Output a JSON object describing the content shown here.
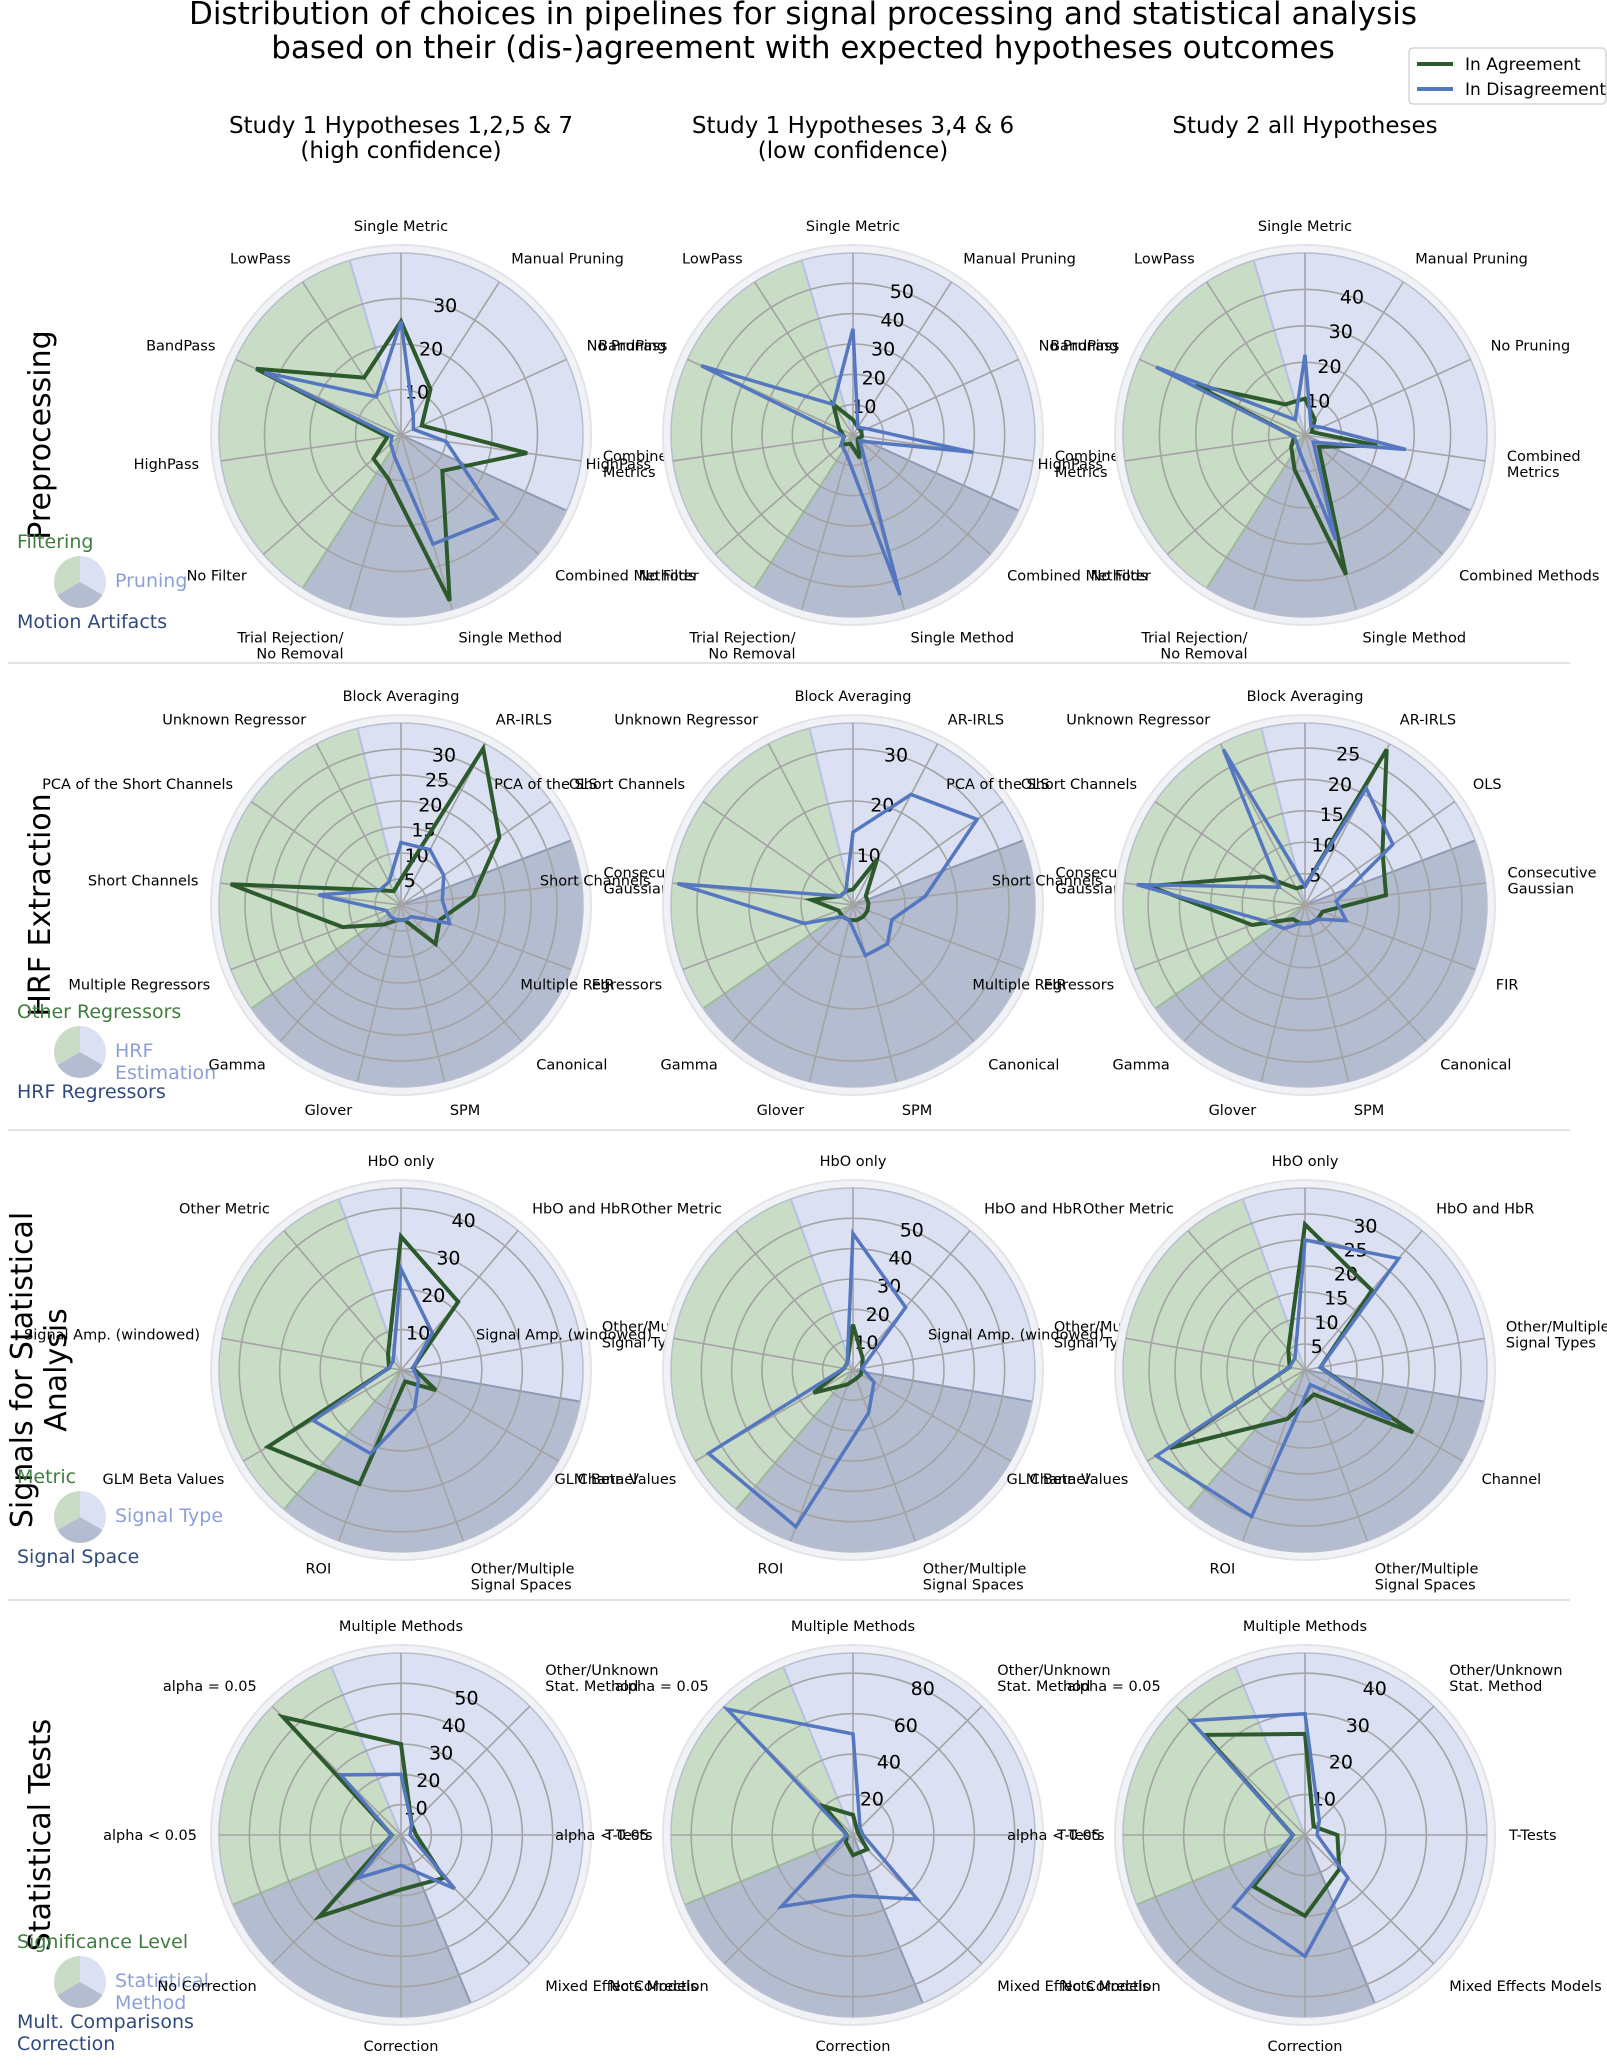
{
  "title": [
    "Distribution of choices in pipelines for signal processing and statistical analysis",
    "based on their (dis-)agreement with expected hypotheses outcomes"
  ],
  "legend": [
    {
      "label": "In Agreement",
      "color": "#2d5a2d"
    },
    {
      "label": "In Disagreement",
      "color": "#5577bf"
    }
  ],
  "columns": [
    [
      "Study 1 Hypotheses 1,2,5 & 7",
      "(high confidence)"
    ],
    [
      "Study 1 Hypotheses 3,4 & 6",
      "(low confidence)"
    ],
    [
      "Study 2 all Hypotheses"
    ]
  ],
  "colors": {
    "agree": "#2d5a2d",
    "disagree": "#5577bf",
    "sectorGreen": "#c9dcc6",
    "sectorLight": "#dbe1f2",
    "sectorDark": "#b4bccf",
    "txtGreen": "#3f7d3f",
    "txtLight": "#8ca0d6",
    "txtDark": "#2f4a7c"
  },
  "rows": [
    {
      "title": [
        "Preprocessing"
      ],
      "groups": [
        {
          "label": [
            "Filtering"
          ],
          "color": "green"
        },
        {
          "label": [
            "Pruning"
          ],
          "color": "light"
        },
        {
          "label": [
            "Motion Artifacts"
          ],
          "color": "dark"
        }
      ],
      "categories": [
        {
          "label": [
            "Single Metric"
          ],
          "group": 1
        },
        {
          "label": [
            "Manual Pruning"
          ],
          "group": 1
        },
        {
          "label": [
            "No Pruning"
          ],
          "group": 1
        },
        {
          "label": [
            "Combined",
            "Metrics"
          ],
          "group": 1
        },
        {
          "label": [
            "Combined Methods"
          ],
          "group": 2
        },
        {
          "label": [
            "Single Method"
          ],
          "group": 2
        },
        {
          "label": [
            "Trial Rejection/",
            "No Removal"
          ],
          "group": 2
        },
        {
          "label": [
            "No Filter"
          ],
          "group": 0
        },
        {
          "label": [
            "HighPass"
          ],
          "group": 0
        },
        {
          "label": [
            "BandPass"
          ],
          "group": 0
        },
        {
          "label": [
            "LowPass"
          ],
          "group": 0
        }
      ]
    },
    {
      "title": [
        "HRF Extraction"
      ],
      "groups": [
        {
          "label": [
            "Other Regressors"
          ],
          "color": "green"
        },
        {
          "label": [
            "HRF",
            "Estimation"
          ],
          "color": "light"
        },
        {
          "label": [
            "HRF Regressors"
          ],
          "color": "dark"
        }
      ],
      "categories": [
        {
          "label": [
            "Block Averaging"
          ],
          "group": 1
        },
        {
          "label": [
            "AR-IRLS"
          ],
          "group": 1
        },
        {
          "label": [
            "OLS"
          ],
          "group": 1
        },
        {
          "label": [
            "Consecutive",
            "Gaussian"
          ],
          "group": 2
        },
        {
          "label": [
            "FIR"
          ],
          "group": 2
        },
        {
          "label": [
            "Canonical"
          ],
          "group": 2
        },
        {
          "label": [
            "SPM"
          ],
          "group": 2
        },
        {
          "label": [
            "Glover"
          ],
          "group": 2
        },
        {
          "label": [
            "Gamma"
          ],
          "group": 2
        },
        {
          "label": [
            "Multiple Regressors"
          ],
          "group": 0
        },
        {
          "label": [
            "Short Channels"
          ],
          "group": 0
        },
        {
          "label": [
            "PCA of the Short Channels"
          ],
          "group": 0
        },
        {
          "label": [
            "Unknown Regressor"
          ],
          "group": 0
        }
      ]
    },
    {
      "title": [
        "Signals for Statistical",
        "Analysis"
      ],
      "groups": [
        {
          "label": [
            "Metric"
          ],
          "color": "green"
        },
        {
          "label": [
            "Signal Type"
          ],
          "color": "light"
        },
        {
          "label": [
            "Signal Space"
          ],
          "color": "dark"
        }
      ],
      "categories": [
        {
          "label": [
            "HbO only"
          ],
          "group": 1
        },
        {
          "label": [
            "HbO and HbR"
          ],
          "group": 1
        },
        {
          "label": [
            "Other/Multiple",
            "Signal Types"
          ],
          "group": 1
        },
        {
          "label": [
            "Channel"
          ],
          "group": 2
        },
        {
          "label": [
            "Other/Multiple",
            "Signal Spaces"
          ],
          "group": 2
        },
        {
          "label": [
            "ROI"
          ],
          "group": 2
        },
        {
          "label": [
            "GLM Beta Values"
          ],
          "group": 0
        },
        {
          "label": [
            "Signal Amp. (windowed)"
          ],
          "group": 0
        },
        {
          "label": [
            "Other Metric"
          ],
          "group": 0
        }
      ]
    },
    {
      "title": [
        "Statistical Tests"
      ],
      "groups": [
        {
          "label": [
            "Significance Level"
          ],
          "color": "green"
        },
        {
          "label": [
            "Statistical",
            "Method"
          ],
          "color": "light"
        },
        {
          "label": [
            "Mult. Comparisons",
            "Correction"
          ],
          "color": "dark"
        }
      ],
      "categories": [
        {
          "label": [
            "Multiple Methods"
          ],
          "group": 1
        },
        {
          "label": [
            "Other/Unknown",
            "Stat. Method"
          ],
          "group": 1
        },
        {
          "label": [
            "T-Tests"
          ],
          "group": 1
        },
        {
          "label": [
            "Mixed Effects Models"
          ],
          "group": 1
        },
        {
          "label": [
            "Correction"
          ],
          "group": 2
        },
        {
          "label": [
            "No Correction"
          ],
          "group": 2
        },
        {
          "label": [
            "alpha < 0.05"
          ],
          "group": 0
        },
        {
          "label": [
            "alpha = 0.05"
          ],
          "group": 0
        }
      ]
    }
  ],
  "chart_data": [
    {
      "type": "radar",
      "row": 0,
      "col": 0,
      "rmax": 40,
      "ticks": [
        10,
        20,
        30
      ],
      "series": [
        {
          "name": "In Agreement",
          "values": [
            25,
            12,
            5,
            28,
            12,
            38,
            10,
            8,
            3,
            35,
            15
          ]
        },
        {
          "name": "In Disagreement",
          "values": [
            25,
            5,
            3,
            10,
            28,
            25,
            5,
            3,
            2,
            33,
            10
          ]
        }
      ]
    },
    {
      "type": "radar",
      "row": 0,
      "col": 1,
      "rmax": 60,
      "ticks": [
        10,
        20,
        30,
        40,
        50
      ],
      "series": [
        {
          "name": "In Agreement",
          "values": [
            5,
            3,
            3,
            3,
            2,
            8,
            3,
            5,
            3,
            5,
            12
          ]
        },
        {
          "name": "In Disagreement",
          "values": [
            35,
            3,
            5,
            40,
            3,
            55,
            7,
            5,
            3,
            55,
            12
          ]
        }
      ]
    },
    {
      "type": "radar",
      "row": 0,
      "col": 2,
      "rmax": 50,
      "ticks": [
        10,
        20,
        30,
        40
      ],
      "series": [
        {
          "name": "In Agreement",
          "values": [
            10,
            5,
            2,
            20,
            5,
            40,
            10,
            5,
            3,
            33,
            10
          ]
        },
        {
          "name": "In Disagreement",
          "values": [
            22,
            3,
            5,
            28,
            3,
            30,
            5,
            3,
            3,
            45,
            5
          ]
        }
      ]
    },
    {
      "type": "radar",
      "row": 1,
      "col": 0,
      "rmax": 35,
      "ticks": [
        5,
        10,
        15,
        20,
        25,
        30
      ],
      "series": [
        {
          "name": "In Agreement",
          "values": [
            5,
            34,
            23,
            14,
            8,
            10,
            3,
            3,
            5,
            12,
            33,
            5,
            3
          ]
        },
        {
          "name": "In Disagreement",
          "values": [
            12,
            12,
            10,
            8,
            10,
            3,
            3,
            3,
            3,
            3,
            16,
            5,
            5
          ]
        }
      ]
    },
    {
      "type": "radar",
      "row": 1,
      "col": 1,
      "rmax": 35,
      "ticks": [
        10,
        20,
        30
      ],
      "series": [
        {
          "name": "In Agreement",
          "values": [
            3,
            10,
            3,
            3,
            3,
            3,
            3,
            3,
            3,
            3,
            8,
            3,
            3
          ]
        },
        {
          "name": "In Disagreement",
          "values": [
            14,
            24,
            29,
            14,
            8,
            10,
            10,
            3,
            3,
            10,
            34,
            3,
            3
          ]
        }
      ]
    },
    {
      "type": "radar",
      "row": 1,
      "col": 2,
      "rmax": 29,
      "ticks": [
        5,
        10,
        15,
        20,
        25
      ],
      "series": [
        {
          "name": "In Agreement",
          "values": [
            3,
            28,
            15,
            13,
            3,
            3,
            3,
            3,
            3,
            9,
            25,
            8,
            3
          ]
        },
        {
          "name": "In Disagreement",
          "values": [
            3,
            21,
            17,
            5,
            7,
            3,
            3,
            3,
            5,
            7,
            27,
            5,
            28
          ]
        }
      ]
    },
    {
      "type": "radar",
      "row": 2,
      "col": 0,
      "rmax": 45,
      "ticks": [
        10,
        20,
        30,
        40
      ],
      "series": [
        {
          "name": "In Agreement",
          "values": [
            33,
            22,
            3,
            10,
            3,
            30,
            38,
            3,
            5
          ]
        },
        {
          "name": "In Disagreement",
          "values": [
            25,
            12,
            3,
            5,
            10,
            22,
            25,
            3,
            3
          ]
        }
      ]
    },
    {
      "type": "radar",
      "row": 2,
      "col": 1,
      "rmax": 60,
      "ticks": [
        10,
        20,
        30,
        40,
        50
      ],
      "series": [
        {
          "name": "In Agreement",
          "values": [
            15,
            5,
            3,
            3,
            3,
            5,
            15,
            3,
            3
          ]
        },
        {
          "name": "In Disagreement",
          "values": [
            45,
            27,
            3,
            8,
            15,
            55,
            55,
            3,
            3
          ]
        }
      ]
    },
    {
      "type": "radar",
      "row": 2,
      "col": 2,
      "rmax": 35,
      "ticks": [
        5,
        10,
        15,
        20,
        25,
        30
      ],
      "series": [
        {
          "name": "In Agreement",
          "values": [
            28,
            20,
            3,
            24,
            5,
            10,
            30,
            3,
            5
          ]
        },
        {
          "name": "In Disagreement",
          "values": [
            25,
            28,
            3,
            19,
            3,
            30,
            33,
            3,
            3
          ]
        }
      ]
    },
    {
      "type": "radar",
      "row": 3,
      "col": 0,
      "rmax": 60,
      "ticks": [
        10,
        20,
        30,
        40,
        50
      ],
      "series": [
        {
          "name": "In Agreement",
          "values": [
            30,
            5,
            5,
            20,
            18,
            38,
            3,
            55
          ]
        },
        {
          "name": "In Disagreement",
          "values": [
            20,
            5,
            3,
            25,
            10,
            20,
            3,
            28
          ]
        }
      ]
    },
    {
      "type": "radar",
      "row": 3,
      "col": 1,
      "rmax": 90,
      "ticks": [
        20,
        40,
        60,
        80
      ],
      "series": [
        {
          "name": "In Agreement",
          "values": [
            10,
            3,
            3,
            10,
            10,
            5,
            3,
            20
          ]
        },
        {
          "name": "In Disagreement",
          "values": [
            50,
            5,
            5,
            45,
            30,
            50,
            3,
            88
          ]
        }
      ]
    },
    {
      "type": "radar",
      "row": 3,
      "col": 2,
      "rmax": 45,
      "ticks": [
        10,
        20,
        30,
        40
      ],
      "series": [
        {
          "name": "In Agreement",
          "values": [
            25,
            3,
            8,
            12,
            20,
            18,
            3,
            35
          ]
        },
        {
          "name": "In Disagreement",
          "values": [
            30,
            5,
            3,
            15,
            30,
            25,
            3,
            40
          ]
        }
      ]
    }
  ]
}
